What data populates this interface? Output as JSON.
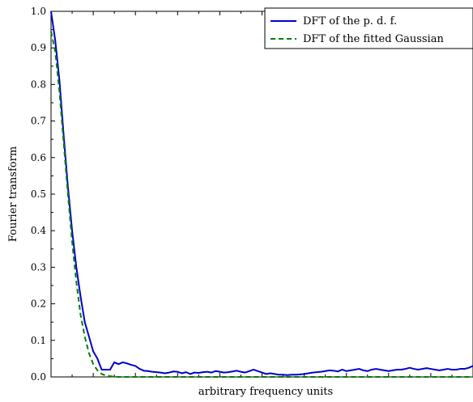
{
  "chart_data": {
    "type": "line",
    "title": "",
    "xlabel": "arbitrary frequency units",
    "ylabel": "Fourier transform",
    "xlim": [
      0,
      100
    ],
    "ylim": [
      0,
      1.0
    ],
    "yticks": [
      "0.0",
      "0.1",
      "0.2",
      "0.3",
      "0.4",
      "0.5",
      "0.6",
      "0.7",
      "0.8",
      "0.9",
      "1.0"
    ],
    "xtick_labels_shown": false,
    "grid": false,
    "legend_position": "top-right",
    "series": [
      {
        "name": "DFT of the p. d. f.",
        "color": "#0000cc",
        "style": "solid",
        "x": [
          0,
          1,
          2,
          3,
          4,
          5,
          6,
          7,
          8,
          9,
          10,
          11,
          12,
          13,
          14,
          15,
          16,
          17,
          18,
          19,
          20,
          21,
          22,
          23,
          24,
          25,
          26,
          27,
          28,
          29,
          30,
          31,
          32,
          33,
          34,
          35,
          36,
          37,
          38,
          39,
          40,
          41,
          42,
          43,
          44,
          45,
          46,
          47,
          48,
          49,
          50,
          51,
          52,
          53,
          54,
          55,
          56,
          57,
          58,
          59,
          60,
          61,
          62,
          63,
          64,
          65,
          66,
          67,
          68,
          69,
          70,
          71,
          72,
          73,
          74,
          75,
          76,
          77,
          78,
          79,
          80,
          81,
          82,
          83,
          84,
          85,
          86,
          87,
          88,
          89,
          90,
          91,
          92,
          93,
          94,
          95,
          96,
          97,
          98,
          99,
          100
        ],
        "y": [
          1.0,
          0.92,
          0.81,
          0.66,
          0.52,
          0.4,
          0.3,
          0.22,
          0.15,
          0.11,
          0.07,
          0.05,
          0.02,
          0.02,
          0.02,
          0.04,
          0.035,
          0.04,
          0.037,
          0.033,
          0.03,
          0.022,
          0.017,
          0.016,
          0.014,
          0.013,
          0.012,
          0.01,
          0.012,
          0.015,
          0.014,
          0.01,
          0.013,
          0.008,
          0.012,
          0.011,
          0.013,
          0.014,
          0.012,
          0.016,
          0.014,
          0.012,
          0.013,
          0.015,
          0.017,
          0.014,
          0.012,
          0.016,
          0.02,
          0.016,
          0.012,
          0.008,
          0.01,
          0.008,
          0.006,
          0.006,
          0.005,
          0.006,
          0.006,
          0.007,
          0.008,
          0.01,
          0.012,
          0.013,
          0.014,
          0.016,
          0.018,
          0.017,
          0.015,
          0.02,
          0.016,
          0.018,
          0.02,
          0.022,
          0.018,
          0.016,
          0.02,
          0.022,
          0.02,
          0.018,
          0.016,
          0.018,
          0.02,
          0.02,
          0.022,
          0.025,
          0.022,
          0.02,
          0.022,
          0.024,
          0.022,
          0.02,
          0.018,
          0.02,
          0.022,
          0.02,
          0.02,
          0.022,
          0.022,
          0.025,
          0.03
        ]
      },
      {
        "name": "DFT of the fitted Gaussian",
        "color": "#008000",
        "style": "dashed",
        "x": [
          0,
          1,
          2,
          3,
          4,
          5,
          6,
          7,
          8,
          9,
          10,
          11,
          12,
          13,
          14,
          15,
          16,
          17,
          18,
          19,
          20,
          100
        ],
        "y": [
          0.945,
          0.89,
          0.78,
          0.64,
          0.5,
          0.37,
          0.26,
          0.17,
          0.11,
          0.065,
          0.035,
          0.018,
          0.008,
          0.004,
          0.002,
          0.001,
          0.0,
          0.0,
          0.0,
          0.0,
          0.0,
          0.0
        ]
      }
    ]
  }
}
